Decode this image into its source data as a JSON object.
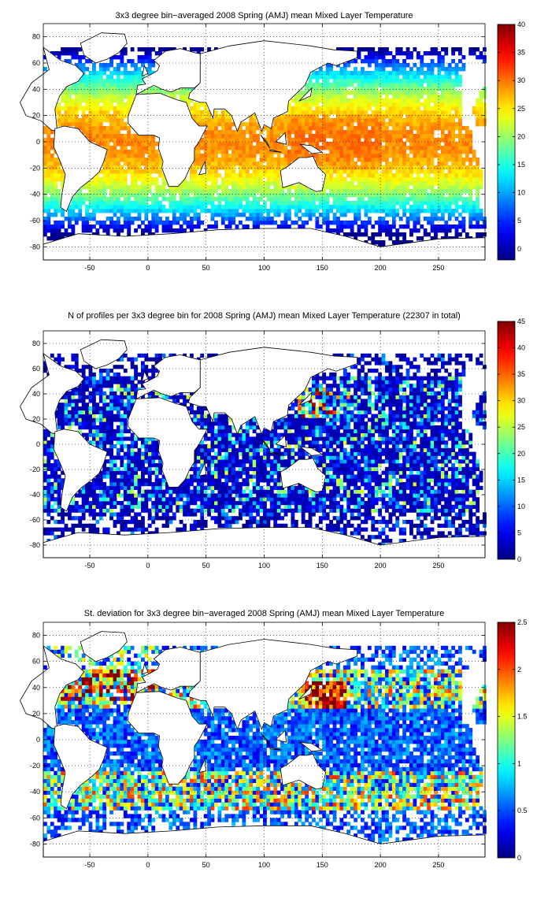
{
  "chart_data": [
    {
      "type": "heatmap",
      "title": "3x3 degree bin−averaged 2008 Spring (AMJ) mean Mixed Layer Temperature",
      "x_ticks": [
        -50,
        0,
        50,
        100,
        150,
        200,
        250
      ],
      "y_ticks": [
        -80,
        -60,
        -40,
        -20,
        0,
        20,
        40,
        60,
        80
      ],
      "xlim": [
        -90,
        290
      ],
      "ylim": [
        -90,
        90
      ],
      "grid": true,
      "bin_size_deg": 3,
      "colormap": "jet",
      "clim": [
        -2,
        40
      ],
      "colorbar_ticks": [
        0,
        5,
        10,
        15,
        20,
        25,
        30,
        35,
        40
      ],
      "field": "temperature"
    },
    {
      "type": "heatmap",
      "title": "N of profiles per 3x3 degree bin for 2008 Spring (AMJ) mean Mixed Layer Temperature  (22307 in total)",
      "x_ticks": [
        -50,
        0,
        50,
        100,
        150,
        200,
        250
      ],
      "y_ticks": [
        -80,
        -60,
        -40,
        -20,
        0,
        20,
        40,
        60,
        80
      ],
      "xlim": [
        -90,
        290
      ],
      "ylim": [
        -90,
        90
      ],
      "grid": true,
      "bin_size_deg": 3,
      "colormap": "jet",
      "clim": [
        0,
        45
      ],
      "colorbar_ticks": [
        0,
        5,
        10,
        15,
        20,
        25,
        30,
        35,
        40,
        45
      ],
      "field": "count"
    },
    {
      "type": "heatmap",
      "title": "St. deviation for 3x3 degree bin−averaged 2008 Spring (AMJ) mean Mixed Layer Temperature",
      "x_ticks": [
        -50,
        0,
        50,
        100,
        150,
        200,
        250
      ],
      "y_ticks": [
        -80,
        -60,
        -40,
        -20,
        0,
        20,
        40,
        60,
        80
      ],
      "xlim": [
        -90,
        290
      ],
      "ylim": [
        -90,
        90
      ],
      "grid": true,
      "bin_size_deg": 3,
      "colormap": "jet",
      "clim": [
        0,
        2.5
      ],
      "colorbar_ticks": [
        0,
        0.5,
        1,
        1.5,
        2,
        2.5
      ],
      "field": "stdev"
    }
  ]
}
